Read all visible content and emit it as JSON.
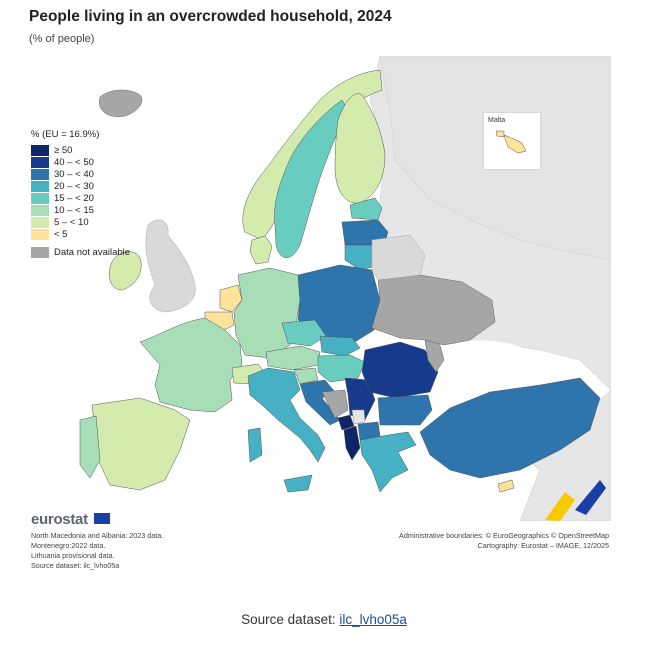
{
  "title": "People living in an overcrowded household, 2024",
  "subtitle": "(% of people)",
  "legend": {
    "title": "% (EU = 16.9%)",
    "classes": [
      {
        "label": "≥ 50",
        "color": "#0f2467"
      },
      {
        "label": "40 – < 50",
        "color": "#163b8c"
      },
      {
        "label": "30 – < 40",
        "color": "#2e74ad"
      },
      {
        "label": "20 – < 30",
        "color": "#46b1c5"
      },
      {
        "label": "15 – < 20",
        "color": "#68cdbf"
      },
      {
        "label": "10 – < 15",
        "color": "#a7deb7"
      },
      {
        "label": "5 – < 10",
        "color": "#d4ebae"
      },
      {
        "label": "< 5",
        "color": "#fde29a"
      }
    ],
    "not_available": {
      "label": "Data not available",
      "color": "#a6a6a6"
    }
  },
  "inset": {
    "label": "Malta"
  },
  "logo": "eurostat",
  "notes": [
    "North Macedonia and Albania: 2023 data.",
    "Montenegro:2022 data.",
    "Lithuania provisional data.",
    "Source dataset: ilc_lvho05a"
  ],
  "credits": [
    "Administrative boundaries: © EuroGeographics © OpenStreetMap",
    "Cartography: Eurostat – IMAGE, 12/2025"
  ],
  "source": {
    "prefix": "Source dataset: ",
    "link": "ilc_lvho05a"
  },
  "colors": {
    "sea": "#ffffff",
    "non_eu": "#e6e6e6",
    "border": "#555555"
  }
}
